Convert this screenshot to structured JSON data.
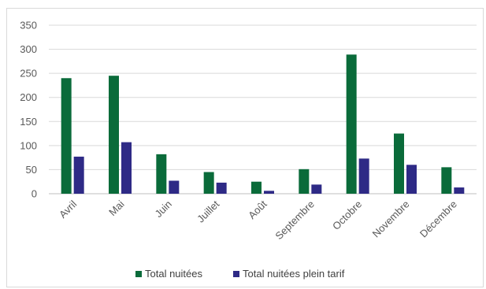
{
  "chart_data": {
    "type": "bar",
    "categories": [
      "Avril",
      "Mai",
      "Juin",
      "Juillet",
      "Août",
      "Septembre",
      "Octobre",
      "Novembre",
      "Décembre"
    ],
    "series": [
      {
        "name": "Total nuitées",
        "color": "#0a6b3a",
        "values": [
          240,
          245,
          82,
          45,
          25,
          51,
          289,
          125,
          55
        ]
      },
      {
        "name": "Total nuitées plein tarif",
        "color": "#2e2a86",
        "values": [
          77,
          107,
          27,
          23,
          6,
          19,
          73,
          60,
          13
        ]
      }
    ],
    "ylim": [
      0,
      350
    ],
    "yticks": [
      0,
      50,
      100,
      150,
      200,
      250,
      300,
      350
    ],
    "grid": true,
    "legend_position": "bottom"
  }
}
